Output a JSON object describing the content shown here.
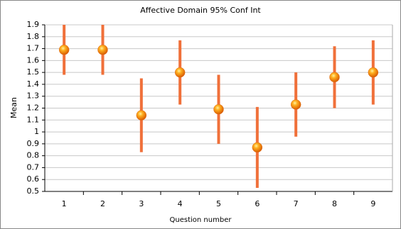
{
  "chart_data": {
    "type": "errorbar",
    "title": "Affective Domain 95% Conf Int",
    "x_label": "Question number",
    "y_label": "Mean",
    "categories": [
      "1",
      "2",
      "3",
      "4",
      "5",
      "6",
      "7",
      "8",
      "9"
    ],
    "values": [
      1.69,
      1.69,
      1.14,
      1.5,
      1.19,
      0.87,
      1.23,
      1.46,
      1.5
    ],
    "errors": [
      0.21,
      0.21,
      0.31,
      0.27,
      0.29,
      0.34,
      0.27,
      0.26,
      0.27
    ],
    "color": "#f0703a",
    "ylim": [
      0.5,
      1.9
    ],
    "yticks": [
      0.5,
      0.6,
      0.7,
      0.8,
      0.9,
      1,
      1.1,
      1.2,
      1.3,
      1.4,
      1.5,
      1.6,
      1.7,
      1.8,
      1.9
    ],
    "grid": true
  }
}
